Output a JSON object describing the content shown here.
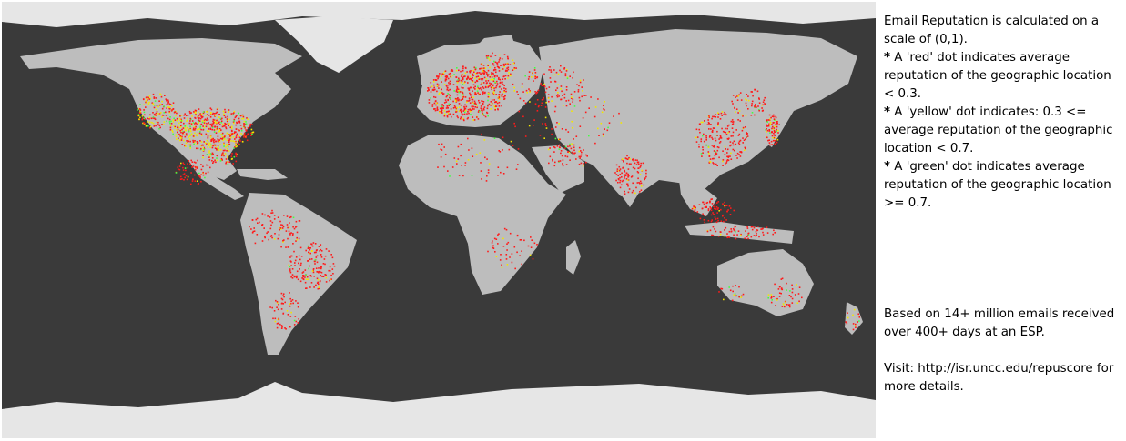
{
  "map": {
    "background": "#3a3a3a",
    "land_color": "#bdbdbd",
    "ice_color": "#e6e6e6",
    "dot_colors": {
      "red": "#ff1a1a",
      "yellow": "#f2e600",
      "green": "#44ff44"
    }
  },
  "legend": {
    "intro": "Email Reputation is calculated on a scale of (0,1).",
    "items": [
      {
        "bullet": "*",
        "text": "A 'red' dot indicates average reputation of the geographic location < 0.3."
      },
      {
        "bullet": "*",
        "text": "A 'yellow' dot indicates: 0.3 <= average reputation of the geographic location < 0.7."
      },
      {
        "bullet": "*",
        "text": "A 'green' dot indicates average reputation of the geographic location >= 0.7."
      }
    ],
    "basis": "Based on 14+ million emails received over 400+ days at an ESP.",
    "visit": "Visit: http://isr.uncc.edu/repuscore for more details."
  }
}
